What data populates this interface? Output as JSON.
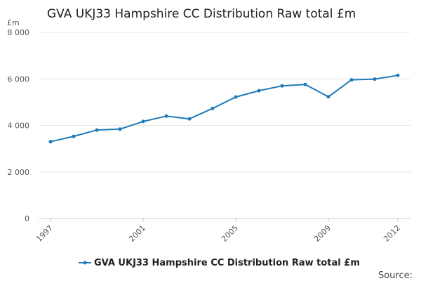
{
  "chart_data": {
    "type": "line",
    "title": "GVA UKJ33 Hampshire CC Distribution Raw total £m",
    "ylabel": "£m",
    "xlabel": "",
    "ylim": [
      0,
      8000
    ],
    "yticks": [
      0,
      2000,
      4000,
      6000,
      8000
    ],
    "ytick_labels": [
      "0",
      "2 000",
      "4 000",
      "6 000",
      "8 000"
    ],
    "xlim": [
      1997,
      2012
    ],
    "xticks": [
      1997,
      2001,
      2005,
      2009,
      2012
    ],
    "xtick_labels": [
      "1997",
      "2001",
      "2005",
      "2009",
      "2012"
    ],
    "x": [
      1997,
      1998,
      1999,
      2000,
      2001,
      2002,
      2003,
      2004,
      2005,
      2006,
      2007,
      2008,
      2009,
      2010,
      2011,
      2012
    ],
    "series": [
      {
        "name": "GVA UKJ33 Hampshire CC Distribution Raw total £m",
        "color": "#1f7ab8",
        "values": [
          3300,
          3530,
          3800,
          3840,
          4170,
          4400,
          4280,
          4730,
          5220,
          5490,
          5700,
          5760,
          5230,
          5960,
          5990,
          6150
        ]
      }
    ],
    "grid": true,
    "legend": "bottom-center",
    "source_label": "Source:"
  }
}
